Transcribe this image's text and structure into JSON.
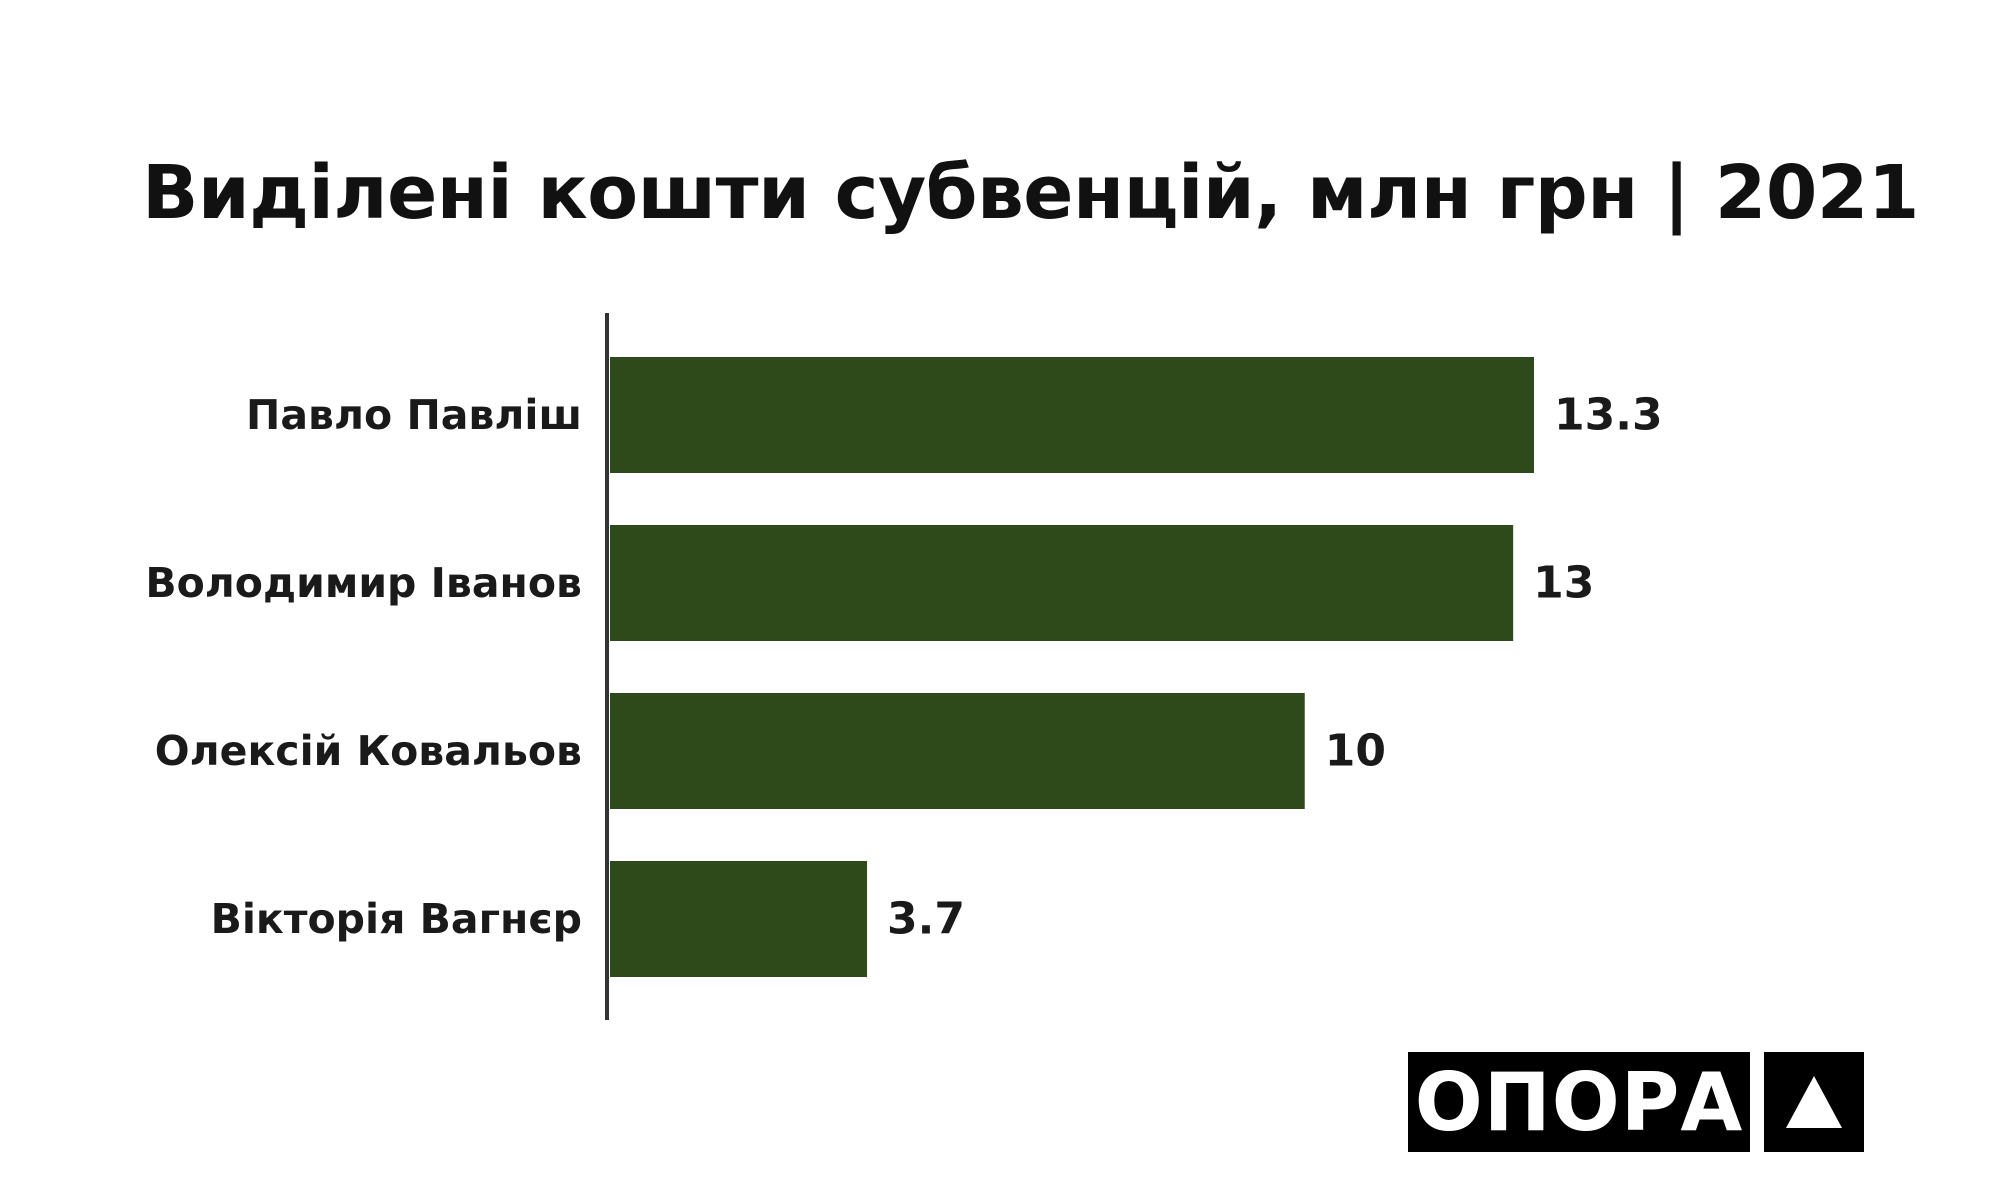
{
  "chart_data": {
    "type": "bar",
    "orientation": "horizontal",
    "title": "Виділені кошти субвенцій, млн грн | 2021",
    "categories": [
      "Павло Павліш",
      "Володимир Іванов",
      "Олексій Ковальов",
      "Вікторія Вагнєр"
    ],
    "values": [
      13.3,
      13,
      10,
      3.7
    ],
    "value_labels": [
      "13.3",
      "13",
      "10",
      "3.7"
    ],
    "xlim": [
      0,
      13.3
    ],
    "grid": false,
    "bar_color": "#2e4a1b"
  },
  "logo": {
    "text": "ОПОРА",
    "mark": "triangle-icon"
  }
}
